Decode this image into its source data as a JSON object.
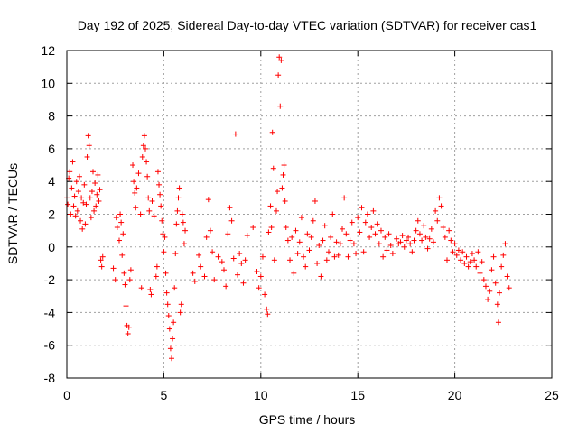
{
  "chart_data": {
    "type": "scatter",
    "title": "Day 192 of 2025, Sidereal Day-to-day VTEC variation (SDTVAR) for receiver cas1",
    "xlabel": "GPS time / hours",
    "ylabel": "SDTVAR / TECUs",
    "xlim": [
      0,
      25
    ],
    "ylim": [
      -8,
      12
    ],
    "xticks": [
      0,
      5,
      10,
      15,
      20,
      25
    ],
    "yticks": [
      -8,
      -6,
      -4,
      -2,
      0,
      2,
      4,
      6,
      8,
      10,
      12
    ],
    "xtick_labels": [
      "0",
      "5",
      "10",
      "15",
      "20",
      "25"
    ],
    "ytick_labels": [
      "-8",
      "-6",
      "-4",
      "-2",
      "0",
      "2",
      "4",
      "6",
      "8",
      "10",
      "12"
    ],
    "grid": true,
    "marker": "+",
    "series": [
      {
        "name": "SDTVAR",
        "color": "#ff0000",
        "points": [
          [
            0.0,
            3.0
          ],
          [
            0.05,
            2.6
          ],
          [
            0.1,
            4.2
          ],
          [
            0.15,
            4.6
          ],
          [
            0.2,
            2.0
          ],
          [
            0.25,
            3.6
          ],
          [
            0.3,
            5.2
          ],
          [
            0.35,
            2.5
          ],
          [
            0.4,
            3.1
          ],
          [
            0.45,
            1.9
          ],
          [
            0.5,
            4.0
          ],
          [
            0.55,
            2.2
          ],
          [
            0.6,
            3.4
          ],
          [
            0.65,
            4.3
          ],
          [
            0.7,
            1.6
          ],
          [
            0.75,
            3.0
          ],
          [
            0.8,
            1.1
          ],
          [
            0.85,
            2.7
          ],
          [
            0.9,
            3.8
          ],
          [
            0.95,
            1.4
          ],
          [
            1.0,
            2.6
          ],
          [
            1.05,
            5.5
          ],
          [
            1.1,
            6.8
          ],
          [
            1.15,
            6.2
          ],
          [
            1.2,
            3.0
          ],
          [
            1.25,
            1.8
          ],
          [
            1.3,
            3.4
          ],
          [
            1.35,
            4.6
          ],
          [
            1.4,
            2.2
          ],
          [
            1.45,
            3.9
          ],
          [
            1.5,
            2.5
          ],
          [
            1.55,
            3.2
          ],
          [
            1.6,
            4.4
          ],
          [
            1.65,
            2.8
          ],
          [
            1.7,
            3.5
          ],
          [
            1.75,
            -0.8
          ],
          [
            1.8,
            -1.2
          ],
          [
            1.85,
            -0.6
          ],
          [
            2.4,
            -1.3
          ],
          [
            2.5,
            -2.0
          ],
          [
            2.55,
            1.8
          ],
          [
            2.6,
            1.2
          ],
          [
            2.7,
            0.4
          ],
          [
            2.75,
            2.0
          ],
          [
            2.8,
            1.5
          ],
          [
            2.85,
            -0.5
          ],
          [
            2.9,
            0.8
          ],
          [
            2.95,
            -1.6
          ],
          [
            3.0,
            -2.3
          ],
          [
            3.05,
            -3.6
          ],
          [
            3.1,
            -4.8
          ],
          [
            3.15,
            -5.3
          ],
          [
            3.2,
            -4.9
          ],
          [
            3.25,
            -2.0
          ],
          [
            3.3,
            -1.4
          ],
          [
            3.4,
            5.0
          ],
          [
            3.45,
            4.0
          ],
          [
            3.5,
            3.3
          ],
          [
            3.55,
            2.4
          ],
          [
            3.6,
            3.6
          ],
          [
            3.7,
            4.5
          ],
          [
            3.8,
            2.0
          ],
          [
            3.85,
            -2.5
          ],
          [
            3.9,
            5.5
          ],
          [
            3.95,
            6.2
          ],
          [
            4.0,
            6.8
          ],
          [
            4.05,
            6.0
          ],
          [
            4.1,
            5.2
          ],
          [
            4.15,
            4.3
          ],
          [
            4.2,
            3.0
          ],
          [
            4.25,
            2.2
          ],
          [
            4.3,
            -2.6
          ],
          [
            4.35,
            -2.9
          ],
          [
            4.4,
            2.8
          ],
          [
            4.5,
            1.9
          ],
          [
            4.6,
            -1.8
          ],
          [
            4.65,
            -1.2
          ],
          [
            4.7,
            4.6
          ],
          [
            4.75,
            3.8
          ],
          [
            4.8,
            3.2
          ],
          [
            4.85,
            2.5
          ],
          [
            4.9,
            1.6
          ],
          [
            4.95,
            0.8
          ],
          [
            5.0,
            -0.3
          ],
          [
            5.05,
            0.6
          ],
          [
            5.1,
            -1.6
          ],
          [
            5.15,
            -2.8
          ],
          [
            5.2,
            -3.5
          ],
          [
            5.25,
            -4.2
          ],
          [
            5.3,
            -5.0
          ],
          [
            5.35,
            -6.2
          ],
          [
            5.4,
            -6.8
          ],
          [
            5.45,
            -5.6
          ],
          [
            5.5,
            -4.6
          ],
          [
            5.55,
            -2.5
          ],
          [
            5.6,
            -0.4
          ],
          [
            5.65,
            1.4
          ],
          [
            5.7,
            2.2
          ],
          [
            5.75,
            3.0
          ],
          [
            5.8,
            3.6
          ],
          [
            5.85,
            -4.0
          ],
          [
            5.9,
            -3.5
          ],
          [
            5.95,
            2.0
          ],
          [
            6.0,
            1.5
          ],
          [
            6.05,
            0.2
          ],
          [
            6.1,
            1.0
          ],
          [
            6.5,
            -1.6
          ],
          [
            6.6,
            -2.1
          ],
          [
            6.8,
            -0.5
          ],
          [
            6.9,
            -1.2
          ],
          [
            7.1,
            -1.8
          ],
          [
            7.2,
            0.6
          ],
          [
            7.3,
            2.9
          ],
          [
            7.4,
            1.0
          ],
          [
            7.5,
            -0.3
          ],
          [
            7.6,
            -2.0
          ],
          [
            7.8,
            -0.6
          ],
          [
            8.0,
            -0.9
          ],
          [
            8.1,
            -1.4
          ],
          [
            8.2,
            -2.4
          ],
          [
            8.3,
            0.8
          ],
          [
            8.4,
            2.4
          ],
          [
            8.5,
            1.6
          ],
          [
            8.6,
            -0.7
          ],
          [
            8.7,
            6.9
          ],
          [
            8.8,
            -1.7
          ],
          [
            8.9,
            -0.4
          ],
          [
            9.0,
            -1.0
          ],
          [
            9.1,
            -2.2
          ],
          [
            9.2,
            -0.8
          ],
          [
            9.3,
            0.7
          ],
          [
            9.6,
            1.2
          ],
          [
            9.8,
            -1.5
          ],
          [
            9.9,
            -2.5
          ],
          [
            10.0,
            -1.8
          ],
          [
            10.1,
            -0.6
          ],
          [
            10.2,
            -2.9
          ],
          [
            10.3,
            -3.8
          ],
          [
            10.35,
            -4.1
          ],
          [
            10.4,
            0.9
          ],
          [
            10.5,
            2.5
          ],
          [
            10.55,
            1.2
          ],
          [
            10.6,
            7.0
          ],
          [
            10.65,
            4.8
          ],
          [
            10.7,
            -0.8
          ],
          [
            10.8,
            2.2
          ],
          [
            10.85,
            3.4
          ],
          [
            10.9,
            10.5
          ],
          [
            10.95,
            11.6
          ],
          [
            11.0,
            8.6
          ],
          [
            11.05,
            11.4
          ],
          [
            11.1,
            3.6
          ],
          [
            11.15,
            4.4
          ],
          [
            11.2,
            5.0
          ],
          [
            11.25,
            2.8
          ],
          [
            11.3,
            1.2
          ],
          [
            11.4,
            0.4
          ],
          [
            11.5,
            -0.8
          ],
          [
            11.6,
            0.6
          ],
          [
            11.7,
            -1.6
          ],
          [
            11.8,
            1.0
          ],
          [
            11.9,
            -0.4
          ],
          [
            12.0,
            0.3
          ],
          [
            12.1,
            1.8
          ],
          [
            12.2,
            -0.6
          ],
          [
            12.3,
            -1.2
          ],
          [
            12.4,
            0.8
          ],
          [
            12.5,
            -0.2
          ],
          [
            12.6,
            0.6
          ],
          [
            12.7,
            1.6
          ],
          [
            12.8,
            2.8
          ],
          [
            12.9,
            -1.0
          ],
          [
            13.0,
            0.1
          ],
          [
            13.1,
            -1.8
          ],
          [
            13.2,
            0.4
          ],
          [
            13.3,
            1.3
          ],
          [
            13.4,
            -0.8
          ],
          [
            13.5,
            -0.3
          ],
          [
            13.6,
            0.6
          ],
          [
            13.7,
            2.0
          ],
          [
            13.8,
            -0.6
          ],
          [
            13.9,
            0.3
          ],
          [
            14.0,
            -0.5
          ],
          [
            14.1,
            0.2
          ],
          [
            14.2,
            1.1
          ],
          [
            14.3,
            3.0
          ],
          [
            14.4,
            0.8
          ],
          [
            14.5,
            -0.6
          ],
          [
            14.6,
            0.4
          ],
          [
            14.7,
            1.5
          ],
          [
            14.8,
            0.2
          ],
          [
            14.9,
            -0.4
          ],
          [
            15.0,
            1.8
          ],
          [
            15.1,
            0.9
          ],
          [
            15.2,
            2.4
          ],
          [
            15.3,
            -0.3
          ],
          [
            15.4,
            1.5
          ],
          [
            15.5,
            2.0
          ],
          [
            15.6,
            0.6
          ],
          [
            15.7,
            1.2
          ],
          [
            15.8,
            2.2
          ],
          [
            15.9,
            0.8
          ],
          [
            16.0,
            1.4
          ],
          [
            16.1,
            0.2
          ],
          [
            16.2,
            1.0
          ],
          [
            16.3,
            -0.6
          ],
          [
            16.4,
            0.6
          ],
          [
            16.5,
            -0.2
          ],
          [
            16.6,
            0.8
          ],
          [
            16.7,
            0.1
          ],
          [
            16.8,
            -0.4
          ],
          [
            17.0,
            0.5
          ],
          [
            17.1,
            0.2
          ],
          [
            17.2,
            0.3
          ],
          [
            17.3,
            0.7
          ],
          [
            17.4,
            0.0
          ],
          [
            17.5,
            0.4
          ],
          [
            17.6,
            0.6
          ],
          [
            17.7,
            0.2
          ],
          [
            17.8,
            -0.3
          ],
          [
            17.9,
            0.4
          ],
          [
            18.0,
            1.0
          ],
          [
            18.1,
            1.6
          ],
          [
            18.2,
            0.8
          ],
          [
            18.3,
            0.4
          ],
          [
            18.4,
            1.3
          ],
          [
            18.5,
            0.6
          ],
          [
            18.6,
            -0.1
          ],
          [
            18.7,
            0.5
          ],
          [
            18.8,
            1.1
          ],
          [
            18.9,
            0.3
          ],
          [
            19.0,
            2.2
          ],
          [
            19.1,
            1.6
          ],
          [
            19.2,
            3.0
          ],
          [
            19.3,
            2.5
          ],
          [
            19.4,
            1.2
          ],
          [
            19.5,
            0.6
          ],
          [
            19.6,
            -0.8
          ],
          [
            19.7,
            1.0
          ],
          [
            19.8,
            0.4
          ],
          [
            19.9,
            -0.3
          ],
          [
            20.0,
            0.2
          ],
          [
            20.1,
            -0.5
          ],
          [
            20.2,
            -0.2
          ],
          [
            20.3,
            -0.8
          ],
          [
            20.4,
            -0.3
          ],
          [
            20.5,
            -1.0
          ],
          [
            20.6,
            -0.6
          ],
          [
            20.7,
            -1.2
          ],
          [
            20.8,
            -0.9
          ],
          [
            20.9,
            -0.4
          ],
          [
            21.0,
            -0.8
          ],
          [
            21.1,
            -1.2
          ],
          [
            21.2,
            -0.3
          ],
          [
            21.3,
            -1.6
          ],
          [
            21.4,
            -0.9
          ],
          [
            21.5,
            -2.0
          ],
          [
            21.6,
            -2.4
          ],
          [
            21.7,
            -3.2
          ],
          [
            21.8,
            -2.7
          ],
          [
            21.9,
            -1.4
          ],
          [
            22.0,
            -0.6
          ],
          [
            22.1,
            -2.2
          ],
          [
            22.2,
            -3.5
          ],
          [
            22.25,
            -4.6
          ],
          [
            22.3,
            -2.8
          ],
          [
            22.4,
            -1.2
          ],
          [
            22.5,
            -0.5
          ],
          [
            22.6,
            0.2
          ],
          [
            22.7,
            -1.8
          ],
          [
            22.8,
            -2.5
          ]
        ]
      }
    ]
  }
}
